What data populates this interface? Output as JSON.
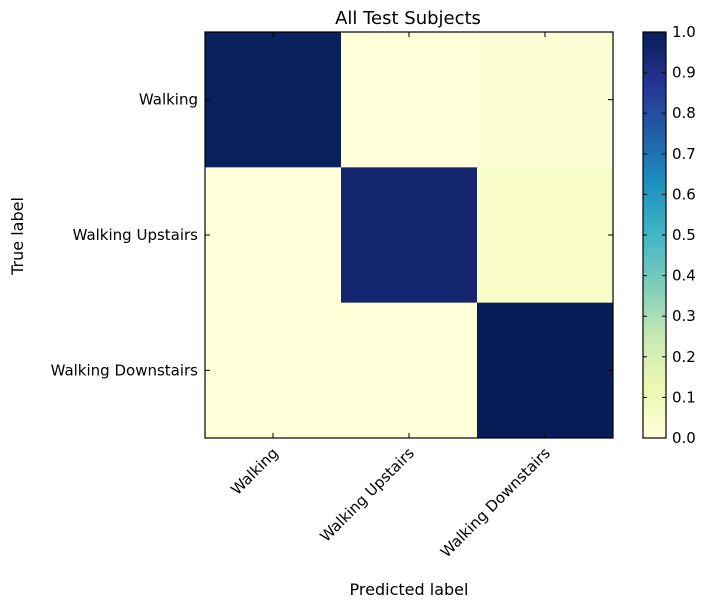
{
  "chart_data": {
    "type": "heatmap",
    "title": "All Test Subjects",
    "xlabel": "Predicted label",
    "ylabel": "True label",
    "x_categories": [
      "Walking",
      "Walking Upstairs",
      "Walking Downstairs"
    ],
    "y_categories": [
      "Walking",
      "Walking Upstairs",
      "Walking Downstairs"
    ],
    "values": [
      [
        0.99,
        0.0,
        0.01
      ],
      [
        0.0,
        0.95,
        0.05
      ],
      [
        0.0,
        0.0,
        1.0
      ]
    ],
    "colormap": "YlGnBu",
    "colorbar": {
      "range": [
        0.0,
        1.0
      ],
      "ticks": [
        "0.0",
        "0.1",
        "0.2",
        "0.3",
        "0.4",
        "0.5",
        "0.6",
        "0.7",
        "0.8",
        "0.9",
        "1.0"
      ]
    },
    "grid": false,
    "legend": "colorbar-right"
  }
}
